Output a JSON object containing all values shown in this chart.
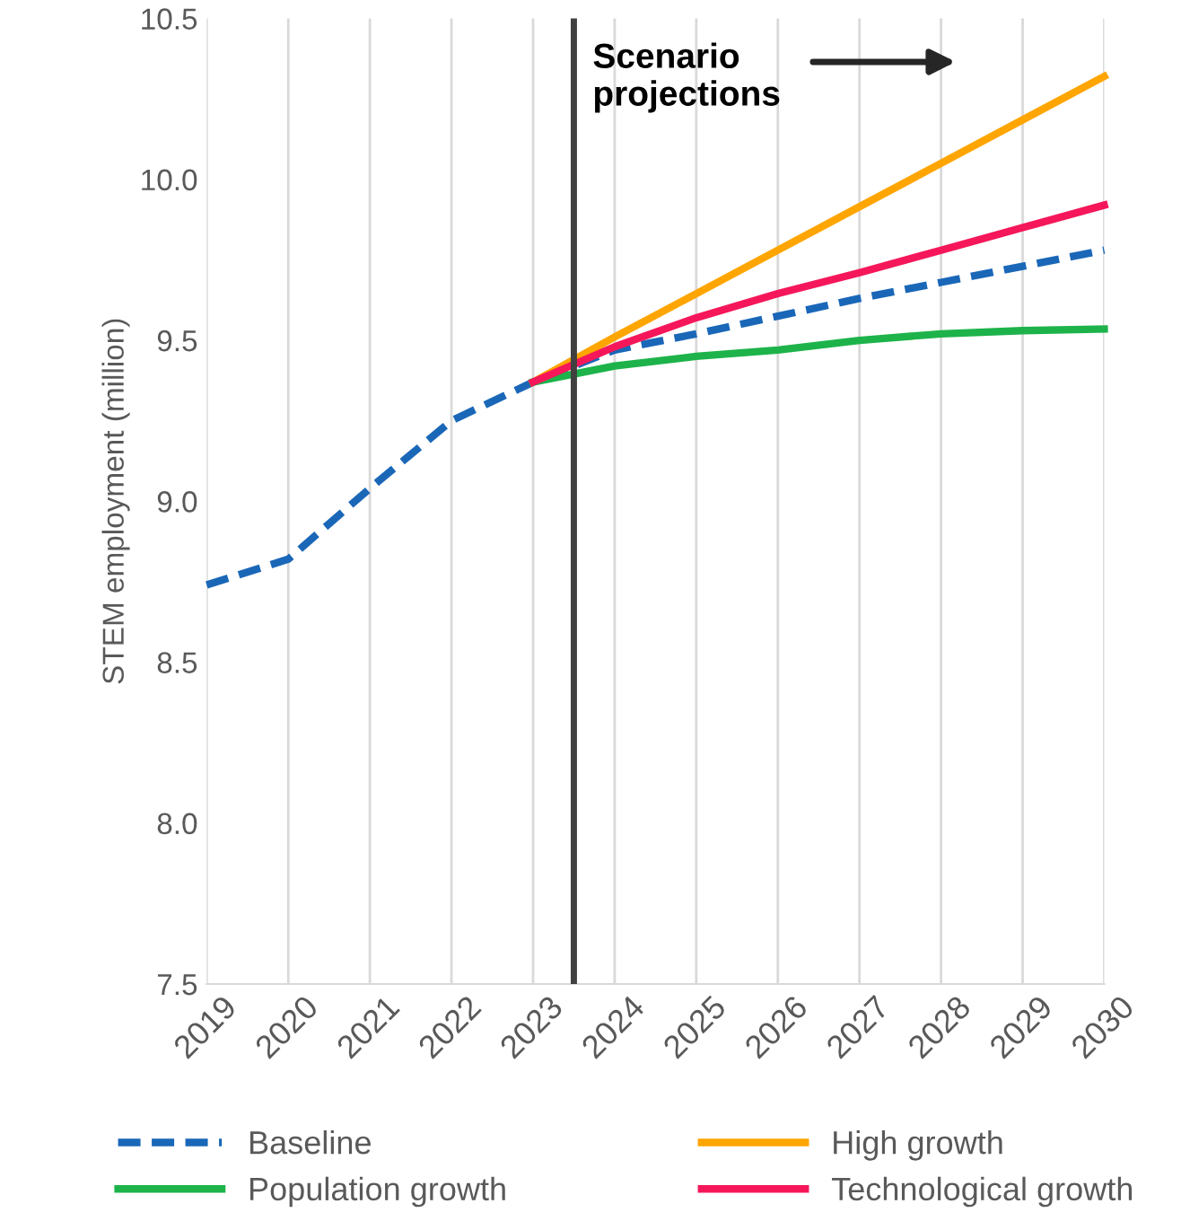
{
  "chart_data": {
    "type": "line",
    "ylabel": "STEM employment (million)",
    "x": [
      2019,
      2020,
      2021,
      2022,
      2023,
      2024,
      2025,
      2026,
      2027,
      2028,
      2029,
      2030
    ],
    "xlim": [
      2019,
      2030
    ],
    "xticks": [
      2019,
      2020,
      2021,
      2022,
      2023,
      2024,
      2025,
      2026,
      2027,
      2028,
      2029,
      2030
    ],
    "ylim": [
      7.5,
      10.5
    ],
    "yticks": [
      7.5,
      {
        "value": 8,
        "label": "8.0"
      },
      8.5,
      {
        "value": 9,
        "label": "9.0"
      },
      9.5,
      {
        "value": 10,
        "label": "10.0"
      },
      10.5
    ],
    "grid": "x",
    "legend": "bottom",
    "series": [
      {
        "name": "Baseline",
        "color": "#1a67b8",
        "line_style": "dashed",
        "values": [
          8.74,
          8.82,
          9.04,
          9.25,
          9.37,
          9.47,
          9.52,
          9.575,
          9.63,
          9.68,
          9.73,
          9.78
        ]
      },
      {
        "name": "High growth",
        "color": "#ffa500",
        "line_style": "solid",
        "values": [
          null,
          null,
          null,
          null,
          9.37,
          9.51,
          9.645,
          9.78,
          9.915,
          10.05,
          10.185,
          10.32
        ]
      },
      {
        "name": "Population growth",
        "color": "#1db34a",
        "line_style": "solid",
        "values": [
          null,
          null,
          null,
          null,
          9.37,
          9.42,
          9.45,
          9.47,
          9.5,
          9.52,
          9.53,
          9.535
        ]
      },
      {
        "name": "Technological growth",
        "color": "#f5175a",
        "line_style": "solid",
        "values": [
          null,
          null,
          null,
          null,
          9.37,
          9.48,
          9.57,
          9.645,
          9.71,
          9.78,
          9.85,
          9.92
        ]
      }
    ],
    "ref_lines": [
      {
        "axis": "x",
        "value": 2023.5,
        "color": "#404040",
        "line_style": "solid"
      }
    ],
    "annotations": [
      "Scenario\nprojections"
    ]
  }
}
